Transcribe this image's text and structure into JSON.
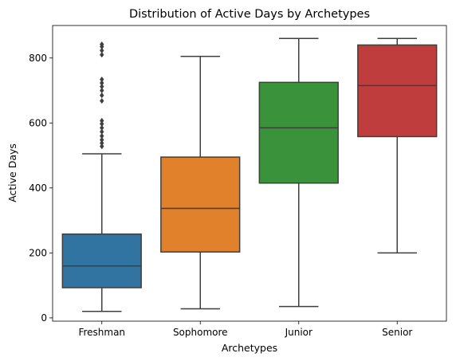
{
  "chart_data": {
    "type": "box",
    "title": "Distribution of Active Days by Archetypes",
    "xlabel": "Archetypes",
    "ylabel": "Active Days",
    "ylim": [
      -10,
      900
    ],
    "yticks": [
      0,
      200,
      400,
      600,
      800
    ],
    "grid": false,
    "legend": "none",
    "categories": [
      "Freshman",
      "Sophomore",
      "Junior",
      "Senior"
    ],
    "boxes": [
      {
        "category": "Freshman",
        "color": "#3274a1",
        "whisker_low": 20,
        "q1": 93,
        "median": 160,
        "q3": 258,
        "whisker_high": 505,
        "outliers": [
          528,
          538,
          548,
          560,
          573,
          585,
          597,
          607,
          668,
          685,
          700,
          712,
          723,
          734,
          810,
          823,
          835,
          842
        ]
      },
      {
        "category": "Sophomore",
        "color": "#e1812c",
        "whisker_low": 28,
        "q1": 203,
        "median": 337,
        "q3": 495,
        "whisker_high": 805,
        "outliers": []
      },
      {
        "category": "Junior",
        "color": "#3a923a",
        "whisker_low": 35,
        "q1": 415,
        "median": 585,
        "q3": 725,
        "whisker_high": 860,
        "outliers": []
      },
      {
        "category": "Senior",
        "color": "#c03d3e",
        "whisker_low": 200,
        "q1": 558,
        "median": 715,
        "q3": 840,
        "whisker_high": 860,
        "outliers": []
      }
    ]
  }
}
